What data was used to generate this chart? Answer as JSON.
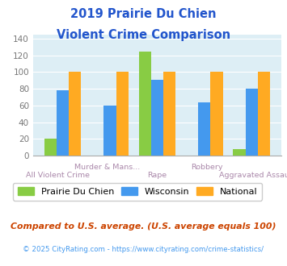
{
  "title_line1": "2019 Prairie Du Chien",
  "title_line2": "Violent Crime Comparison",
  "title_color": "#2255cc",
  "categories": [
    "All Violent Crime",
    "Murder & Mans...",
    "Rape",
    "Robbery",
    "Aggravated Assault"
  ],
  "prairie": [
    20,
    0,
    125,
    0,
    8
  ],
  "wisconsin": [
    78,
    60,
    91,
    64,
    80
  ],
  "national": [
    100,
    100,
    100,
    100,
    100
  ],
  "prairie_color": "#88cc44",
  "wisconsin_color": "#4499ee",
  "national_color": "#ffaa22",
  "plot_bg": "#ddeef5",
  "ylim": [
    0,
    145
  ],
  "yticks": [
    0,
    20,
    40,
    60,
    80,
    100,
    120,
    140
  ],
  "legend_labels": [
    "Prairie Du Chien",
    "Wisconsin",
    "National"
  ],
  "footnote1": "Compared to U.S. average. (U.S. average equals 100)",
  "footnote2": "© 2025 CityRating.com - https://www.cityrating.com/crime-statistics/",
  "footnote1_color": "#cc4400",
  "footnote2_color": "#4499ee",
  "xtick_color": "#aa88aa"
}
